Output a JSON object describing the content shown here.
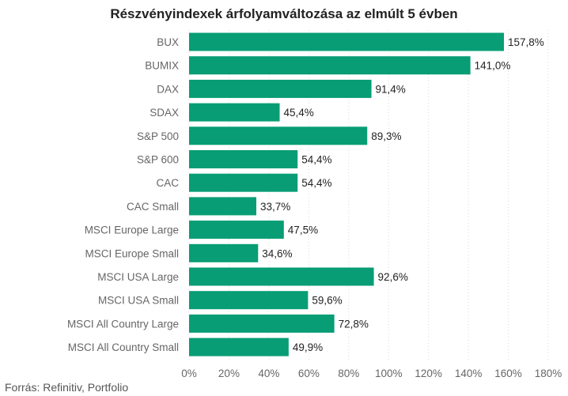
{
  "chart_data": {
    "type": "bar",
    "orientation": "horizontal",
    "title": "Részvényindexek árfolyamváltozása az elmúlt 5 évben",
    "categories": [
      "BUX",
      "BUMIX",
      "DAX",
      "SDAX",
      "S&P 500",
      "S&P 600",
      "CAC",
      "CAC Small",
      "MSCI Europe Large",
      "MSCI Europe Small",
      "MSCI USA Large",
      "MSCI USA Small",
      "MSCI All Country Large",
      "MSCI All Country Small"
    ],
    "values": [
      157.8,
      141.0,
      91.4,
      45.4,
      89.3,
      54.4,
      54.4,
      33.7,
      47.5,
      34.6,
      92.6,
      59.6,
      72.8,
      49.9
    ],
    "value_labels": [
      "157,8%",
      "141,0%",
      "91,4%",
      "45,4%",
      "89,3%",
      "54,4%",
      "54,4%",
      "33,7%",
      "47,5%",
      "34,6%",
      "92,6%",
      "59,6%",
      "72,8%",
      "49,9%"
    ],
    "xlim": [
      0,
      180
    ],
    "xticks": [
      0,
      20,
      40,
      60,
      80,
      100,
      120,
      140,
      160,
      180
    ],
    "xtick_labels": [
      "0%",
      "20%",
      "40%",
      "60%",
      "80%",
      "100%",
      "120%",
      "140%",
      "160%",
      "180%"
    ],
    "grid": true,
    "bar_color": "#089d74"
  },
  "source": "Forrás: Refinitiv, Portfolio"
}
